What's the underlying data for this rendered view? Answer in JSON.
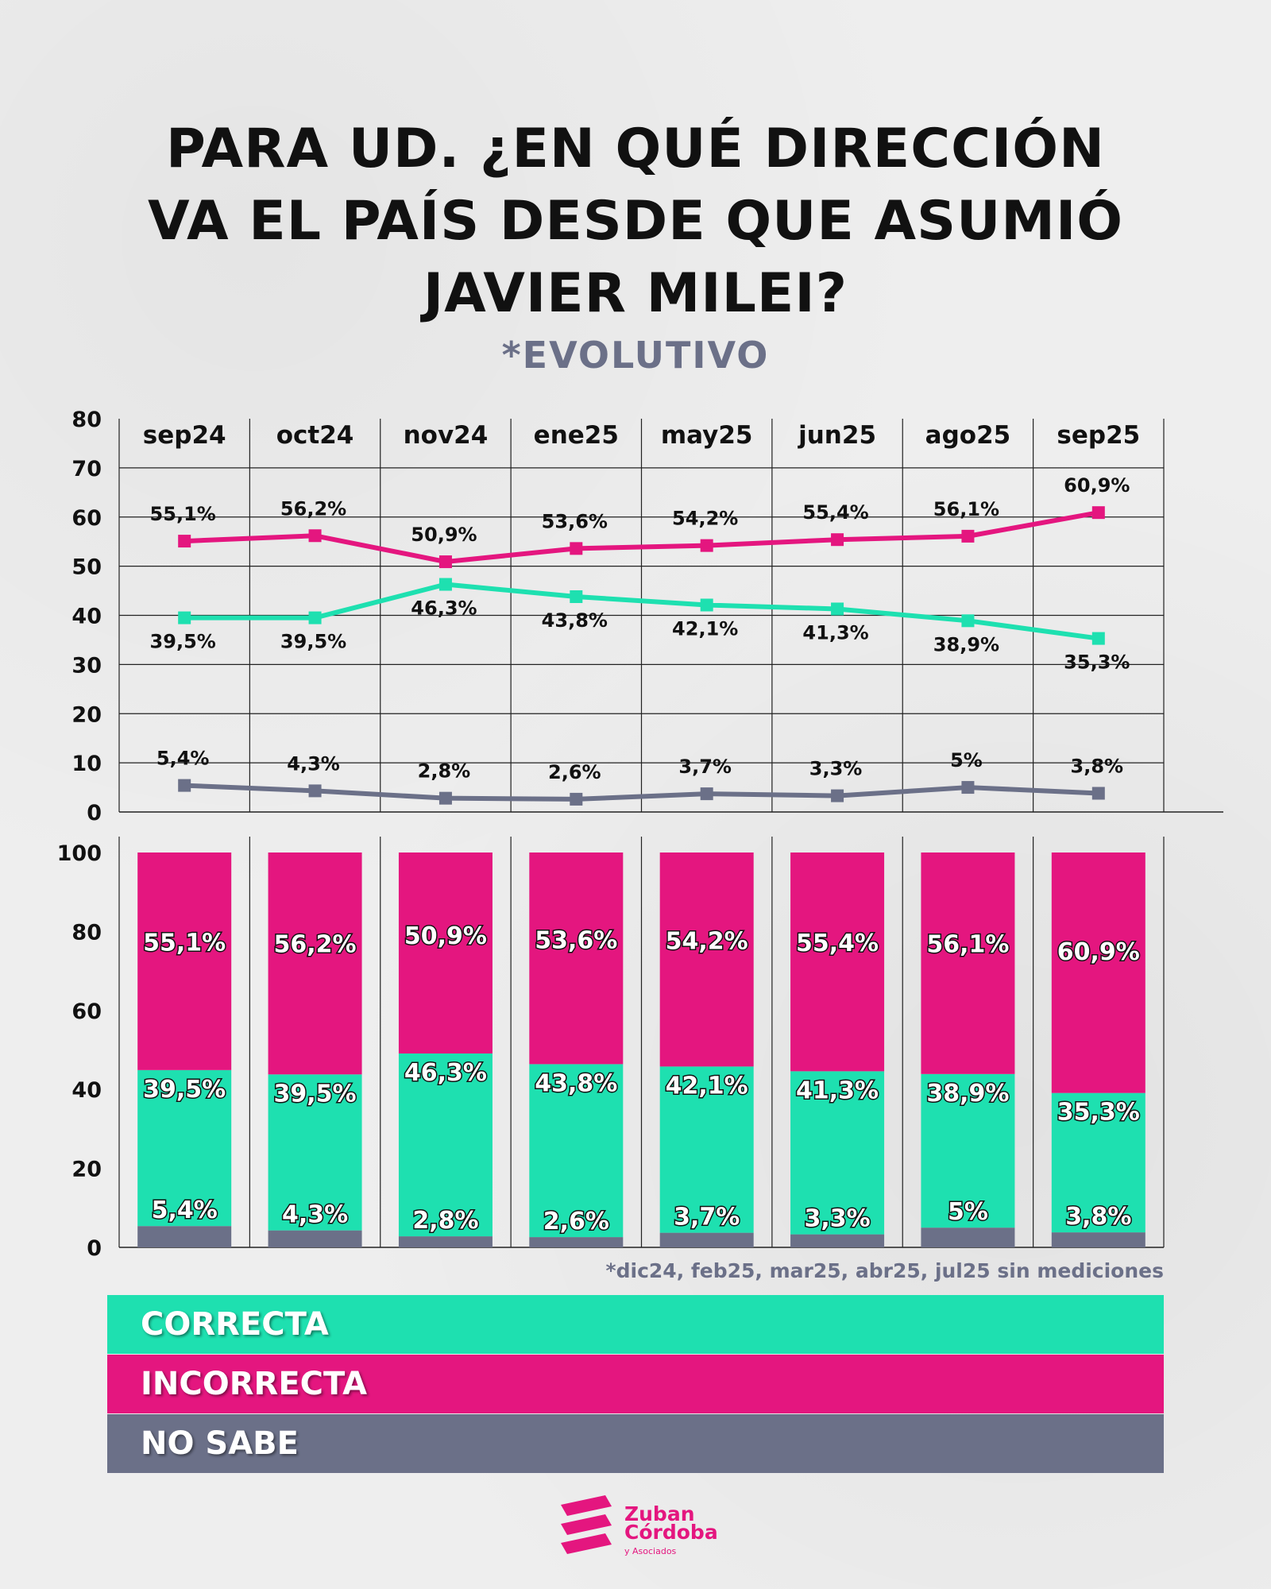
{
  "title_lines": [
    "PARA UD. ¿EN QUÉ DIRECCIÓN",
    "VA EL PAÍS DESDE QUE ASUMIÓ",
    "JAVIER MILEI?"
  ],
  "subtitle": "*EVOLUTIVO",
  "note": "*dic24, feb25, mar25, abr25, jul25 sin mediciones",
  "colors": {
    "correcta": "#1ee0b0",
    "incorrecta": "#e4167f",
    "no_sabe": "#6b7088"
  },
  "legend": [
    {
      "key": "correcta",
      "label": "CORRECTA"
    },
    {
      "key": "incorrecta",
      "label": "INCORRECTA"
    },
    {
      "key": "no_sabe",
      "label": "NO SABE"
    }
  ],
  "logo": {
    "line1": "Zuban",
    "line2": "Córdoba",
    "line3": "y Asociados"
  },
  "chart_data": [
    {
      "type": "line",
      "categories": [
        "sep24",
        "oct24",
        "nov24",
        "ene25",
        "may25",
        "jun25",
        "ago25",
        "sep25"
      ],
      "ylim": [
        0,
        80
      ],
      "yticks": [
        0,
        10,
        20,
        30,
        40,
        50,
        60,
        70,
        80
      ],
      "series": [
        {
          "key": "incorrecta",
          "name": "INCORRECTA",
          "values": [
            55.1,
            56.2,
            50.9,
            53.6,
            54.2,
            55.4,
            56.1,
            60.9
          ],
          "labels": [
            "55,1%",
            "56,2%",
            "50,9%",
            "53,6%",
            "54,2%",
            "55,4%",
            "56,1%",
            "60,9%"
          ]
        },
        {
          "key": "correcta",
          "name": "CORRECTA",
          "values": [
            39.5,
            39.5,
            46.3,
            43.8,
            42.1,
            41.3,
            38.9,
            35.3
          ],
          "labels": [
            "39,5%",
            "39,5%",
            "46,3%",
            "43,8%",
            "42,1%",
            "41,3%",
            "38,9%",
            "35,3%"
          ]
        },
        {
          "key": "no_sabe",
          "name": "NO SABE",
          "values": [
            5.4,
            4.3,
            2.8,
            2.6,
            3.7,
            3.3,
            5,
            3.8
          ],
          "labels": [
            "5,4%",
            "4,3%",
            "2,8%",
            "2,6%",
            "3,7%",
            "3,3%",
            "5%",
            "3,8%"
          ]
        }
      ]
    },
    {
      "type": "bar",
      "stacked": true,
      "categories": [
        "sep24",
        "oct24",
        "nov24",
        "ene25",
        "may25",
        "jun25",
        "ago25",
        "sep25"
      ],
      "ylim": [
        0,
        100
      ],
      "yticks": [
        0,
        20,
        40,
        60,
        80,
        100
      ],
      "series": [
        {
          "key": "no_sabe",
          "name": "NO SABE",
          "values": [
            5.4,
            4.3,
            2.8,
            2.6,
            3.7,
            3.3,
            5,
            3.8
          ],
          "labels": [
            "5,4%",
            "4,3%",
            "2,8%",
            "2,6%",
            "3,7%",
            "3,3%",
            "5%",
            "3,8%"
          ]
        },
        {
          "key": "correcta",
          "name": "CORRECTA",
          "values": [
            39.5,
            39.5,
            46.3,
            43.8,
            42.1,
            41.3,
            38.9,
            35.3
          ],
          "labels": [
            "39,5%",
            "39,5%",
            "46,3%",
            "43,8%",
            "42,1%",
            "41,3%",
            "38,9%",
            "35,3%"
          ]
        },
        {
          "key": "incorrecta",
          "name": "INCORRECTA",
          "values": [
            55.1,
            56.2,
            50.9,
            53.6,
            54.2,
            55.4,
            56.1,
            60.9
          ],
          "labels": [
            "55,1%",
            "56,2%",
            "50,9%",
            "53,6%",
            "54,2%",
            "55,4%",
            "56,1%",
            "60,9%"
          ]
        }
      ]
    }
  ]
}
